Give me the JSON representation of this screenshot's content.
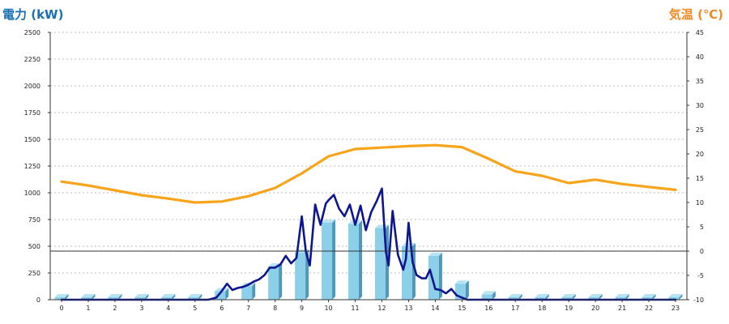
{
  "header": {
    "left_title": "電力 (kW)",
    "right_title": "気温 (℃)"
  },
  "colors": {
    "bar_front": "#8ccfe8",
    "bar_side": "#4f97b8",
    "bar_top": "#b7e3f3",
    "power_line": "#0d1590",
    "temp_line": "#f7a41b",
    "left_title": "#1a6fb0",
    "right_title": "#f08a24"
  },
  "chart_data": {
    "type": "bar",
    "x_ticks": [
      "0",
      "1",
      "2",
      "3",
      "4",
      "5",
      "6",
      "7",
      "8",
      "9",
      "10",
      "11",
      "12",
      "13",
      "14",
      "15",
      "16",
      "17",
      "18",
      "19",
      "20",
      "21",
      "22",
      "23"
    ],
    "y_left": {
      "label": "電力 (kW)",
      "range": [
        0,
        2500
      ],
      "ticks": [
        "0",
        "250",
        "500",
        "750",
        "1000",
        "1250",
        "1500",
        "1750",
        "2000",
        "2250",
        "2500"
      ]
    },
    "y_right": {
      "label": "気温 (℃)",
      "range": [
        -10,
        45
      ],
      "ticks": [
        "-10",
        "-5",
        "0",
        "5",
        "10",
        "15",
        "20",
        "25",
        "30",
        "35",
        "40",
        "45"
      ]
    },
    "grid": true,
    "reference_line_temp": 0,
    "series": [
      {
        "type": "bar",
        "axis": "left",
        "x": [
          0,
          1,
          2,
          3,
          4,
          5,
          6,
          7,
          8,
          9,
          10,
          11,
          12,
          13,
          14,
          15,
          16,
          17,
          18,
          19,
          20,
          21,
          22,
          23
        ],
        "values": [
          5,
          5,
          5,
          5,
          5,
          5,
          80,
          130,
          310,
          440,
          720,
          710,
          670,
          500,
          410,
          150,
          50,
          5,
          5,
          5,
          5,
          5,
          5,
          5
        ]
      },
      {
        "type": "line",
        "axis": "left",
        "x": [
          0,
          1,
          2,
          3,
          4,
          5,
          5.5,
          5.8,
          6,
          6.2,
          6.4,
          6.6,
          6.8,
          7,
          7.2,
          7.4,
          7.6,
          7.8,
          8,
          8.2,
          8.4,
          8.6,
          8.8,
          9,
          9.15,
          9.3,
          9.5,
          9.7,
          9.9,
          10,
          10.2,
          10.4,
          10.6,
          10.8,
          11,
          11.2,
          11.4,
          11.6,
          11.8,
          12,
          12.15,
          12.25,
          12.4,
          12.6,
          12.8,
          12.9,
          13,
          13.15,
          13.3,
          13.5,
          13.65,
          13.8,
          14,
          14.2,
          14.4,
          14.6,
          14.8,
          15,
          15.2,
          15.4,
          15.6,
          15.8,
          16,
          16.2,
          17,
          18,
          19,
          20,
          21,
          22,
          23
        ],
        "values": [
          0,
          0,
          0,
          0,
          0,
          0,
          0,
          20,
          80,
          150,
          90,
          110,
          120,
          140,
          170,
          190,
          230,
          300,
          300,
          330,
          410,
          340,
          390,
          780,
          450,
          320,
          890,
          700,
          900,
          930,
          980,
          850,
          780,
          890,
          700,
          880,
          650,
          820,
          920,
          1040,
          450,
          320,
          830,
          420,
          280,
          380,
          720,
          350,
          230,
          200,
          200,
          280,
          100,
          90,
          60,
          100,
          40,
          20,
          0,
          0,
          0,
          0,
          0,
          0,
          0,
          0,
          0,
          0,
          0,
          0,
          0
        ]
      },
      {
        "type": "line",
        "axis": "right",
        "x": [
          0,
          1,
          2,
          3,
          4,
          5,
          6,
          7,
          8,
          9,
          10,
          11,
          12,
          13,
          14,
          15,
          16,
          17,
          18,
          19,
          20,
          21,
          22,
          23
        ],
        "values": [
          14.3,
          13.5,
          12.5,
          11.5,
          10.8,
          10.0,
          10.2,
          11.3,
          13.0,
          16.0,
          19.5,
          21.0,
          21.3,
          21.6,
          21.8,
          21.4,
          19.0,
          16.4,
          15.5,
          14.0,
          14.7,
          13.8,
          13.2,
          12.6
        ]
      }
    ]
  }
}
